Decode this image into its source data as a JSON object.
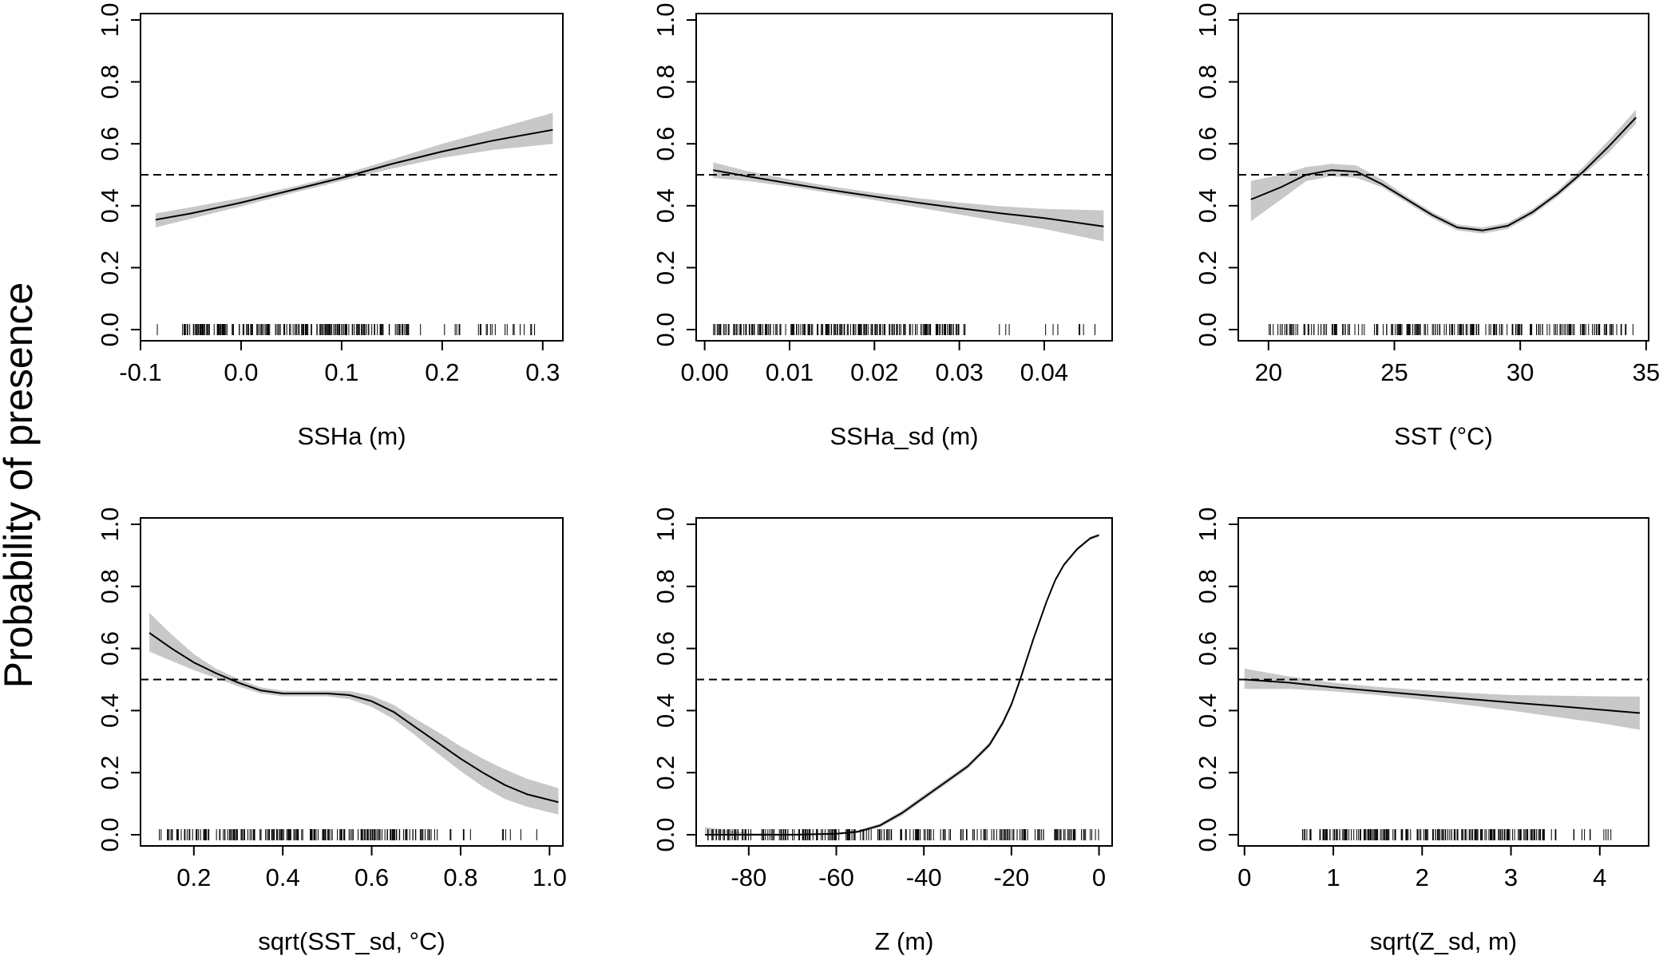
{
  "figure": {
    "ylabel": "Probability of presence",
    "reference_line": 0.5,
    "colors": {
      "line": "#000000",
      "band": "#c8c8c8",
      "frame": "#000000"
    }
  },
  "chart_data": [
    {
      "type": "line",
      "xlabel": "SSHa (m)",
      "ylabel": "Probability of presence",
      "xlim": [
        -0.1,
        0.32
      ],
      "ylim": [
        0,
        1
      ],
      "xticks": [
        -0.1,
        0.0,
        0.1,
        0.2,
        0.3
      ],
      "xtick_labels": [
        "-0.1",
        "0.0",
        "0.1",
        "0.2",
        "0.3"
      ],
      "yticks": [
        0,
        0.2,
        0.4,
        0.6,
        0.8,
        1
      ],
      "ytick_labels": [
        "0.0",
        "0.2",
        "0.4",
        "0.6",
        "0.8",
        "1.0"
      ],
      "hline": 0.5,
      "x": [
        -0.085,
        -0.05,
        0.0,
        0.05,
        0.1,
        0.15,
        0.2,
        0.25,
        0.31
      ],
      "y": [
        0.355,
        0.375,
        0.41,
        0.45,
        0.49,
        0.535,
        0.575,
        0.61,
        0.645
      ],
      "lower": [
        0.33,
        0.358,
        0.398,
        0.44,
        0.48,
        0.52,
        0.555,
        0.58,
        0.6
      ],
      "upper": [
        0.375,
        0.395,
        0.425,
        0.46,
        0.5,
        0.55,
        0.6,
        0.645,
        0.7
      ],
      "rug": {
        "min": -0.09,
        "max": 0.31,
        "dense_min": -0.06,
        "dense_max": 0.17
      }
    },
    {
      "type": "line",
      "xlabel": "SSHa_sd (m)",
      "ylabel": "Probability of presence",
      "xlim": [
        -0.001,
        0.048
      ],
      "ylim": [
        0,
        1
      ],
      "xticks": [
        0.0,
        0.01,
        0.02,
        0.03,
        0.04
      ],
      "xtick_labels": [
        "0.00",
        "0.01",
        "0.02",
        "0.03",
        "0.04"
      ],
      "yticks": [
        0,
        0.2,
        0.4,
        0.6,
        0.8,
        1
      ],
      "ytick_labels": [
        "0.0",
        "0.2",
        "0.4",
        "0.6",
        "0.8",
        "1.0"
      ],
      "hline": 0.5,
      "x": [
        0.001,
        0.005,
        0.01,
        0.015,
        0.02,
        0.025,
        0.03,
        0.035,
        0.04,
        0.047
      ],
      "y": [
        0.515,
        0.495,
        0.472,
        0.45,
        0.43,
        0.41,
        0.392,
        0.375,
        0.36,
        0.333
      ],
      "lower": [
        0.49,
        0.48,
        0.462,
        0.44,
        0.418,
        0.395,
        0.372,
        0.348,
        0.325,
        0.285
      ],
      "upper": [
        0.54,
        0.512,
        0.485,
        0.462,
        0.442,
        0.425,
        0.41,
        0.398,
        0.39,
        0.385
      ],
      "rug": {
        "min": 0.001,
        "max": 0.047,
        "dense_min": 0.001,
        "dense_max": 0.03
      }
    },
    {
      "type": "line",
      "xlabel": "SST (°C)",
      "ylabel": "Probability of presence",
      "xlim": [
        18.8,
        35.1
      ],
      "ylim": [
        0,
        1
      ],
      "xticks": [
        20,
        25,
        30,
        35
      ],
      "xtick_labels": [
        "20",
        "25",
        "30",
        "35"
      ],
      "yticks": [
        0,
        0.2,
        0.4,
        0.6,
        0.8,
        1
      ],
      "ytick_labels": [
        "0.0",
        "0.2",
        "0.4",
        "0.6",
        "0.8",
        "1.0"
      ],
      "hline": 0.5,
      "x": [
        19.3,
        20.5,
        21.5,
        22.5,
        23.5,
        24.5,
        25.5,
        26.5,
        27.5,
        28.5,
        29.5,
        30.5,
        31.5,
        32.5,
        33.5,
        34.6
      ],
      "y": [
        0.42,
        0.46,
        0.5,
        0.515,
        0.51,
        0.47,
        0.42,
        0.37,
        0.33,
        0.32,
        0.335,
        0.38,
        0.44,
        0.51,
        0.59,
        0.685
      ],
      "lower": [
        0.35,
        0.42,
        0.48,
        0.495,
        0.49,
        0.46,
        0.41,
        0.36,
        0.32,
        0.31,
        0.325,
        0.37,
        0.43,
        0.5,
        0.57,
        0.665
      ],
      "upper": [
        0.48,
        0.5,
        0.525,
        0.535,
        0.53,
        0.485,
        0.43,
        0.38,
        0.34,
        0.33,
        0.345,
        0.39,
        0.45,
        0.525,
        0.61,
        0.71
      ],
      "rug": {
        "min": 19.3,
        "max": 34.6,
        "dense_min": 20.0,
        "dense_max": 34.4
      }
    },
    {
      "type": "line",
      "xlabel": "sqrt(SST_sd, °C)",
      "ylabel": "Probability of presence",
      "xlim": [
        0.08,
        1.03
      ],
      "ylim": [
        0,
        1
      ],
      "xticks": [
        0.2,
        0.4,
        0.6,
        0.8,
        1.0
      ],
      "xtick_labels": [
        "0.2",
        "0.4",
        "0.6",
        "0.8",
        "1.0"
      ],
      "yticks": [
        0,
        0.2,
        0.4,
        0.6,
        0.8,
        1
      ],
      "ytick_labels": [
        "0.0",
        "0.2",
        "0.4",
        "0.6",
        "0.8",
        "1.0"
      ],
      "hline": 0.5,
      "x": [
        0.1,
        0.15,
        0.2,
        0.25,
        0.3,
        0.35,
        0.4,
        0.45,
        0.5,
        0.55,
        0.6,
        0.65,
        0.7,
        0.75,
        0.8,
        0.85,
        0.9,
        0.95,
        1.02
      ],
      "y": [
        0.65,
        0.6,
        0.555,
        0.52,
        0.49,
        0.465,
        0.455,
        0.455,
        0.455,
        0.45,
        0.43,
        0.395,
        0.345,
        0.295,
        0.245,
        0.2,
        0.16,
        0.13,
        0.105
      ],
      "lower": [
        0.59,
        0.56,
        0.53,
        0.505,
        0.478,
        0.455,
        0.446,
        0.446,
        0.446,
        0.437,
        0.412,
        0.372,
        0.318,
        0.26,
        0.205,
        0.155,
        0.115,
        0.09,
        0.065
      ],
      "upper": [
        0.715,
        0.645,
        0.582,
        0.535,
        0.502,
        0.475,
        0.464,
        0.464,
        0.464,
        0.463,
        0.448,
        0.418,
        0.372,
        0.33,
        0.285,
        0.245,
        0.21,
        0.18,
        0.15
      ],
      "rug": {
        "min": 0.12,
        "max": 1.0,
        "dense_min": 0.14,
        "dense_max": 0.75
      }
    },
    {
      "type": "line",
      "xlabel": "Z (m)",
      "ylabel": "Probability of presence",
      "xlim": [
        -92,
        3
      ],
      "ylim": [
        0,
        1
      ],
      "xticks": [
        -80,
        -60,
        -40,
        -20,
        0
      ],
      "xtick_labels": [
        "-80",
        "-60",
        "-40",
        "-20",
        "0"
      ],
      "yticks": [
        0,
        0.2,
        0.4,
        0.6,
        0.8,
        1
      ],
      "ytick_labels": [
        "0.0",
        "0.2",
        "0.4",
        "0.6",
        "0.8",
        "1.0"
      ],
      "hline": 0.5,
      "x": [
        -90,
        -80,
        -70,
        -60,
        -55,
        -50,
        -45,
        -40,
        -35,
        -30,
        -25,
        -22,
        -20,
        -18,
        -15,
        -12,
        -10,
        -8,
        -5,
        -2,
        0
      ],
      "y": [
        0.0,
        0.0,
        0.0,
        0.003,
        0.01,
        0.03,
        0.07,
        0.12,
        0.17,
        0.22,
        0.29,
        0.36,
        0.42,
        0.5,
        0.63,
        0.75,
        0.82,
        0.87,
        0.92,
        0.955,
        0.965
      ],
      "lower": [
        0.0,
        0.0,
        0.0,
        0.0,
        0.006,
        0.024,
        0.062,
        0.112,
        0.162,
        0.212,
        0.282,
        0.352,
        0.412,
        0.492,
        0.625,
        0.745,
        0.815,
        0.865,
        0.915,
        0.95,
        0.96
      ],
      "upper": [
        0.025,
        0.005,
        0.003,
        0.006,
        0.014,
        0.036,
        0.078,
        0.128,
        0.178,
        0.228,
        0.298,
        0.368,
        0.428,
        0.508,
        0.635,
        0.755,
        0.825,
        0.875,
        0.925,
        0.96,
        0.97
      ],
      "rug": {
        "min": -90,
        "max": 0,
        "dense_min": -90,
        "dense_max": 0
      }
    },
    {
      "type": "line",
      "xlabel": "sqrt(Z_sd, m)",
      "ylabel": "Probability of presence",
      "xlim": [
        -0.07,
        4.55
      ],
      "ylim": [
        0,
        1
      ],
      "xticks": [
        0,
        1,
        2,
        3,
        4
      ],
      "xtick_labels": [
        "0",
        "1",
        "2",
        "3",
        "4"
      ],
      "yticks": [
        0,
        0.2,
        0.4,
        0.6,
        0.8,
        1
      ],
      "ytick_labels": [
        "0.0",
        "0.2",
        "0.4",
        "0.6",
        "0.8",
        "1.0"
      ],
      "hline": 0.5,
      "x": [
        0.0,
        0.5,
        1.0,
        1.5,
        2.0,
        2.5,
        3.0,
        3.5,
        4.0,
        4.45
      ],
      "y": [
        0.5,
        0.49,
        0.475,
        0.462,
        0.45,
        0.438,
        0.426,
        0.415,
        0.403,
        0.392
      ],
      "lower": [
        0.47,
        0.47,
        0.462,
        0.45,
        0.435,
        0.418,
        0.4,
        0.38,
        0.36,
        0.338
      ],
      "upper": [
        0.535,
        0.51,
        0.49,
        0.476,
        0.466,
        0.457,
        0.45,
        0.448,
        0.446,
        0.445
      ],
      "rug": {
        "min": 0.55,
        "max": 4.4,
        "dense_min": 0.65,
        "dense_max": 3.4
      }
    }
  ]
}
